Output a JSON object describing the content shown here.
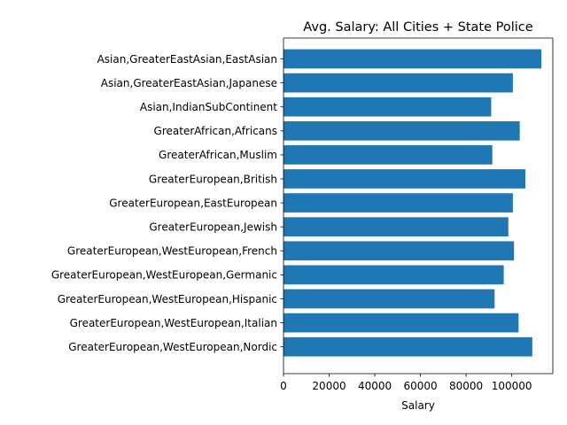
{
  "chart_data": {
    "type": "bar",
    "orientation": "horizontal",
    "title": "Avg. Salary: All Cities + State Police",
    "xlabel": "Salary",
    "ylabel": "",
    "xlim": [
      0,
      118000
    ],
    "xticks": [
      0,
      20000,
      40000,
      60000,
      80000,
      100000
    ],
    "grid": false,
    "legend": "none",
    "bar_color": "#1f77b4",
    "categories": [
      "Asian,GreaterEastAsian,EastAsian",
      "Asian,GreaterEastAsian,Japanese",
      "Asian,IndianSubContinent",
      "GreaterAfrican,Africans",
      "GreaterAfrican,Muslim",
      "GreaterEuropean,British",
      "GreaterEuropean,EastEuropean",
      "GreaterEuropean,Jewish",
      "GreaterEuropean,WestEuropean,French",
      "GreaterEuropean,WestEuropean,Germanic",
      "GreaterEuropean,WestEuropean,Hispanic",
      "GreaterEuropean,WestEuropean,Italian",
      "GreaterEuropean,WestEuropean,Nordic"
    ],
    "values": [
      113000,
      100500,
      91000,
      103500,
      91500,
      106000,
      100500,
      98500,
      101000,
      96500,
      92500,
      103000,
      109000
    ]
  }
}
